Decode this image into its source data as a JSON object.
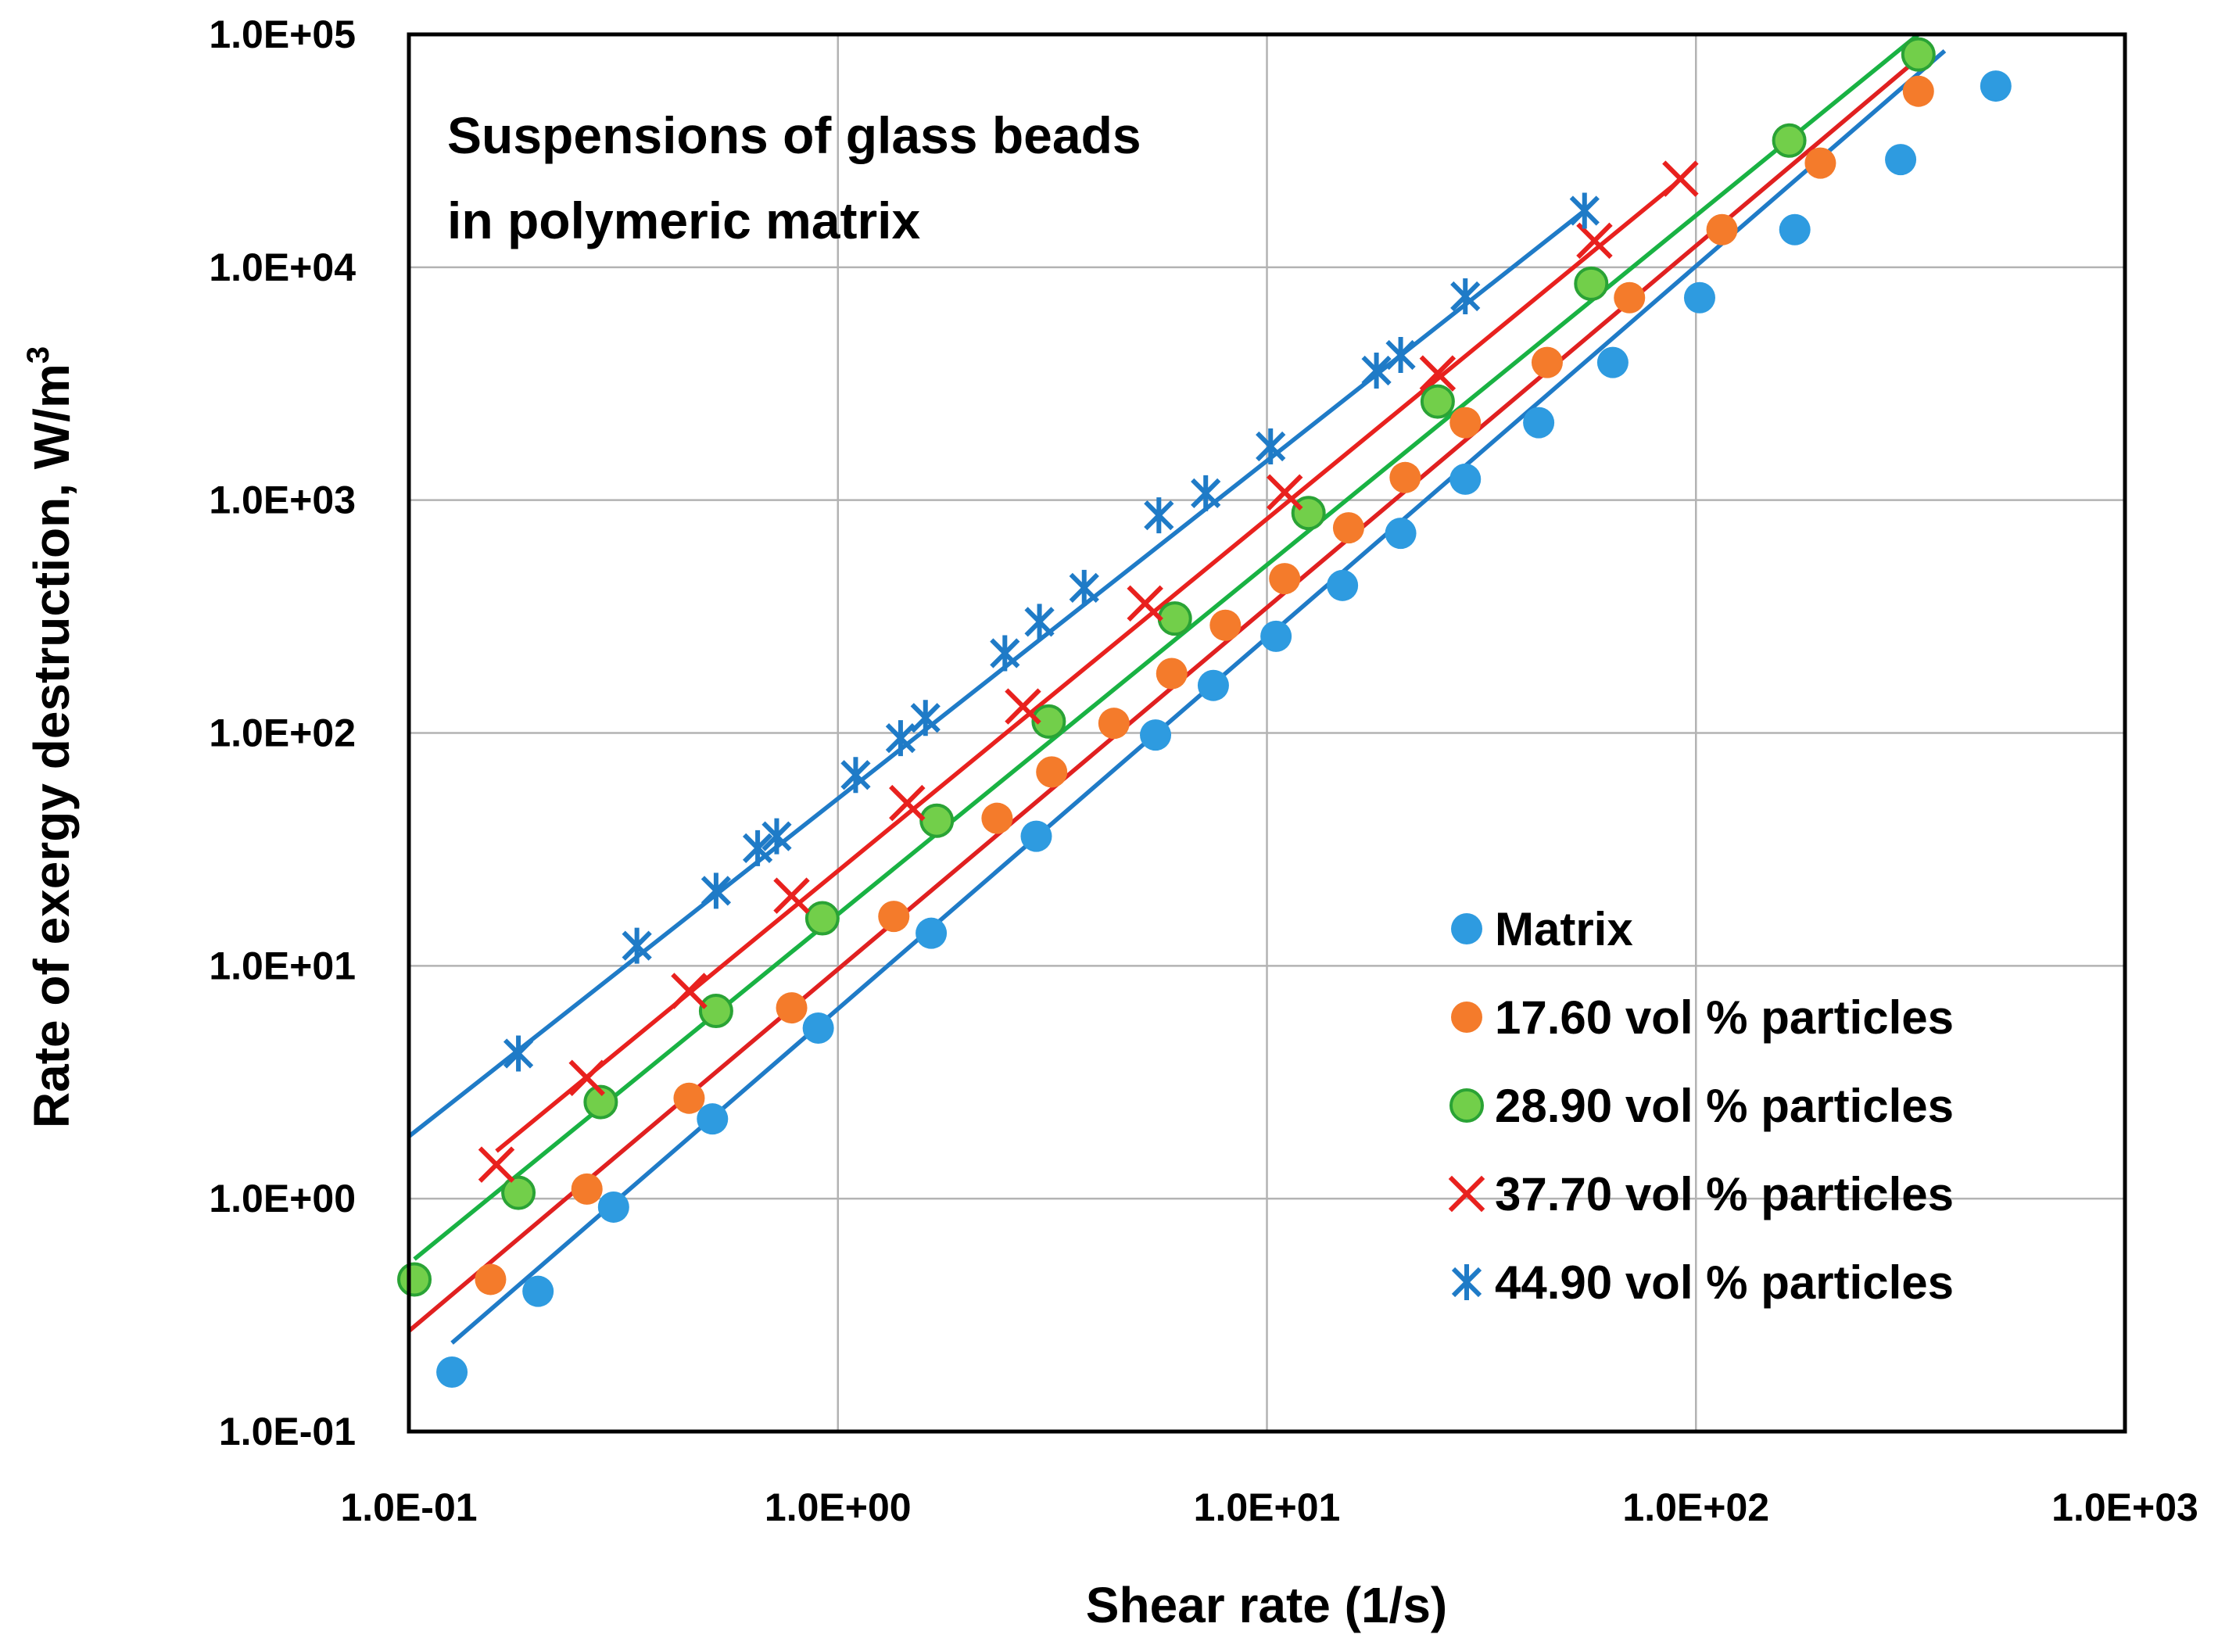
{
  "chart_data": {
    "type": "scatter",
    "x_scale": "log",
    "y_scale": "log",
    "xlabel": "Shear rate (1/s)",
    "ylabel_main": "Rate of exergy destruction, W/m",
    "ylabel_sup": "3",
    "annotation_line1": "Suspensions of glass beads",
    "annotation_line2": "in polymeric matrix",
    "xlim": [
      0.1,
      1000
    ],
    "ylim": [
      0.1,
      100000
    ],
    "grid": true,
    "legend_position": "bottom-right",
    "x_ticks": [
      {
        "value": 0.1,
        "label": "1.0E-01"
      },
      {
        "value": 1,
        "label": "1.0E+00"
      },
      {
        "value": 10,
        "label": "1.0E+01"
      },
      {
        "value": 100,
        "label": "1.0E+02"
      },
      {
        "value": 1000,
        "label": "1.0E+03"
      }
    ],
    "y_ticks": [
      {
        "value": 0.1,
        "label": "1.0E-01"
      },
      {
        "value": 1,
        "label": "1.0E+00"
      },
      {
        "value": 10,
        "label": "1.0E+01"
      },
      {
        "value": 100,
        "label": "1.0E+02"
      },
      {
        "value": 1000,
        "label": "1.0E+03"
      },
      {
        "value": 10000,
        "label": "1.0E+04"
      },
      {
        "value": 100000,
        "label": "1.0E+05"
      }
    ],
    "series": [
      {
        "name": "Matrix",
        "marker": "circle",
        "color": "#2e9be0",
        "edge": "#2e9be0",
        "line_color": "#1f7bc7",
        "fit": {
          "x": [
            0.126,
            380
          ],
          "y": [
            0.24,
            85000
          ]
        },
        "x": [
          0.126,
          0.2,
          0.3,
          0.51,
          0.9,
          1.65,
          2.9,
          5.5,
          7.5,
          10.5,
          15,
          20.5,
          29,
          43,
          64,
          102,
          170,
          300,
          500
        ],
        "y": [
          0.18,
          0.4,
          0.92,
          2.2,
          5.4,
          13.8,
          36,
          98,
          160,
          260,
          430,
          720,
          1230,
          2150,
          3900,
          7400,
          14500,
          29000,
          60000
        ]
      },
      {
        "name": "17.60 vol % particles",
        "marker": "circle",
        "color": "#f47b2b",
        "edge": "#f47b2b",
        "line_color": "#e02020",
        "fit": {
          "x": [
            0.1,
            330
          ],
          "y": [
            0.27,
            79000
          ]
        },
        "x": [
          0.155,
          0.26,
          0.45,
          0.78,
          1.35,
          2.35,
          3.15,
          4.4,
          6,
          8,
          11,
          15.5,
          21,
          29,
          45,
          70,
          115,
          195,
          330
        ],
        "y": [
          0.45,
          1.1,
          2.7,
          6.6,
          16.3,
          43,
          68,
          110,
          180,
          290,
          460,
          760,
          1250,
          2150,
          3900,
          7400,
          14500,
          28000,
          57000
        ]
      },
      {
        "name": "28.90 vol % particles",
        "marker": "circle",
        "color": "#72cf4a",
        "edge": "#2aa335",
        "line_color": "#19b243",
        "fit": {
          "x": [
            0.103,
            330
          ],
          "y": [
            0.55,
            100000
          ]
        },
        "x": [
          0.103,
          0.18,
          0.28,
          0.52,
          0.92,
          1.7,
          3.1,
          6.1,
          12.5,
          25,
          57,
          165,
          330
        ],
        "y": [
          0.45,
          1.06,
          2.6,
          6.4,
          16,
          42,
          112,
          310,
          880,
          2650,
          8500,
          35000,
          82000
        ]
      },
      {
        "name": "37.70 vol % particles",
        "marker": "x",
        "color": "#e8211e",
        "edge": "#e8211e",
        "line_color": "#e8211e",
        "fit": {
          "x": [
            0.16,
            90
          ],
          "y": [
            1.6,
            23000
          ]
        },
        "x": [
          0.16,
          0.26,
          0.45,
          0.78,
          1.45,
          2.7,
          5.2,
          11,
          25,
          58,
          92
        ],
        "y": [
          1.4,
          3.3,
          7.8,
          20,
          50,
          130,
          360,
          1080,
          3500,
          13000,
          24000
        ]
      },
      {
        "name": "44.90 vol % particles",
        "marker": "asterisk",
        "color": "#1f7bc7",
        "edge": "#1f7bc7",
        "line_color": "#1f7bc7",
        "fit": {
          "x": [
            0.1,
            55
          ],
          "y": [
            1.85,
            17500
          ]
        },
        "x": [
          0.18,
          0.34,
          0.52,
          0.65,
          0.72,
          1.1,
          1.4,
          1.6,
          2.45,
          2.95,
          3.75,
          5.6,
          7.2,
          10.2,
          18,
          20.5,
          29,
          55
        ],
        "y": [
          4.2,
          12.2,
          21,
          32,
          36,
          66,
          95,
          116,
          220,
          300,
          420,
          860,
          1070,
          1700,
          3600,
          4200,
          7500,
          17500
        ]
      }
    ]
  }
}
